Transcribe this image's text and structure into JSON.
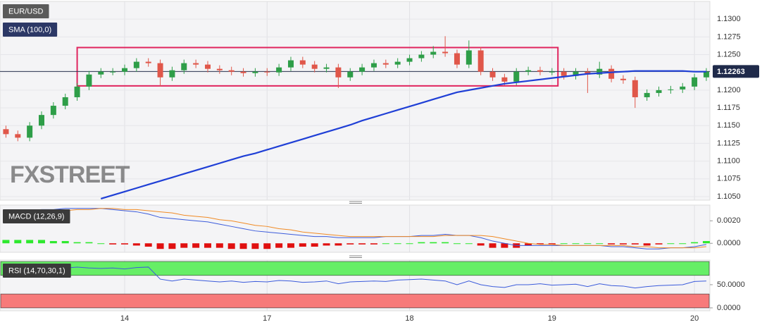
{
  "chart_data": [
    {
      "type": "candlestick",
      "title": "EUR/USD",
      "open": [
        1.1145,
        1.1138,
        1.1133,
        1.115,
        1.1165,
        1.1178,
        1.119,
        1.1205,
        1.1222,
        1.1226,
        1.1226,
        1.1231,
        1.124,
        1.1238,
        1.1218,
        1.1228,
        1.1238,
        1.1236,
        1.123,
        1.1228,
        1.1226,
        1.1224,
        1.1226,
        1.1225,
        1.1232,
        1.1242,
        1.1236,
        1.123,
        1.1232,
        1.1218,
        1.1226,
        1.1232,
        1.1238,
        1.1236,
        1.124,
        1.1245,
        1.125,
        1.1254,
        1.1252,
        1.1236,
        1.1256,
        1.1226,
        1.1218,
        1.1212,
        1.1226,
        1.1228,
        1.1226,
        1.1226,
        1.122,
        1.1226,
        1.1222,
        1.123,
        1.1216,
        1.1214,
        1.119,
        1.1196,
        1.12,
        1.1201,
        1.1205,
        1.1218
      ],
      "high": [
        1.115,
        1.1143,
        1.1155,
        1.117,
        1.1183,
        1.1195,
        1.121,
        1.1227,
        1.1231,
        1.1231,
        1.1236,
        1.1245,
        1.1245,
        1.1243,
        1.1233,
        1.1243,
        1.1243,
        1.1241,
        1.1235,
        1.1233,
        1.1231,
        1.1231,
        1.1231,
        1.1237,
        1.1247,
        1.1247,
        1.1241,
        1.1237,
        1.1237,
        1.1231,
        1.1237,
        1.1243,
        1.1243,
        1.1245,
        1.125,
        1.1255,
        1.1262,
        1.1276,
        1.1257,
        1.127,
        1.1261,
        1.1231,
        1.1223,
        1.1231,
        1.1233,
        1.1233,
        1.1231,
        1.1231,
        1.1231,
        1.1231,
        1.124,
        1.1235,
        1.1221,
        1.1219,
        1.1201,
        1.1205,
        1.1206,
        1.121,
        1.1223,
        1.1231
      ],
      "low": [
        1.1133,
        1.1128,
        1.1128,
        1.1145,
        1.116,
        1.1173,
        1.1185,
        1.12,
        1.1217,
        1.1221,
        1.1221,
        1.1226,
        1.1233,
        1.1205,
        1.1213,
        1.1223,
        1.1231,
        1.1225,
        1.1223,
        1.1221,
        1.1219,
        1.1219,
        1.122,
        1.122,
        1.1227,
        1.1231,
        1.1225,
        1.1225,
        1.1203,
        1.1213,
        1.1221,
        1.1227,
        1.1231,
        1.1231,
        1.1235,
        1.124,
        1.1245,
        1.1247,
        1.1231,
        1.1231,
        1.1221,
        1.1213,
        1.1207,
        1.1207,
        1.1221,
        1.1221,
        1.1221,
        1.1215,
        1.1215,
        1.1196,
        1.1217,
        1.1211,
        1.1209,
        1.1175,
        1.1185,
        1.1191,
        1.1195,
        1.1196,
        1.12,
        1.1213
      ],
      "close": [
        1.1138,
        1.1133,
        1.115,
        1.1165,
        1.1178,
        1.119,
        1.1205,
        1.1222,
        1.1226,
        1.1226,
        1.1231,
        1.124,
        1.1238,
        1.1218,
        1.1228,
        1.1238,
        1.1236,
        1.123,
        1.1228,
        1.1226,
        1.1224,
        1.1226,
        1.1225,
        1.1232,
        1.1242,
        1.1236,
        1.123,
        1.1232,
        1.1218,
        1.1226,
        1.1232,
        1.1238,
        1.1236,
        1.124,
        1.1245,
        1.125,
        1.1254,
        1.1252,
        1.1236,
        1.1256,
        1.1226,
        1.1218,
        1.1212,
        1.1226,
        1.1228,
        1.1226,
        1.1226,
        1.122,
        1.1226,
        1.1222,
        1.123,
        1.1216,
        1.1214,
        1.119,
        1.1196,
        1.12,
        1.1201,
        1.1205,
        1.1218,
        1.1226
      ],
      "up_color": "#2e9e48",
      "down_color": "#e0574a",
      "series": [
        {
          "name": "SMA (100,0)",
          "color": "#1f3fd6",
          "values": [
            null,
            null,
            null,
            null,
            null,
            null,
            null,
            null,
            1.1047,
            1.1052,
            1.1057,
            1.1062,
            1.1067,
            1.1072,
            1.1077,
            1.1082,
            1.1087,
            1.1092,
            1.1097,
            1.1102,
            1.1107,
            1.1111,
            1.1116,
            1.1121,
            1.1126,
            1.1131,
            1.1136,
            1.1141,
            1.1146,
            1.1151,
            1.1157,
            1.1162,
            1.1167,
            1.1172,
            1.1177,
            1.1182,
            1.1187,
            1.1192,
            1.1197,
            1.12,
            1.1203,
            1.1206,
            1.1209,
            1.1211,
            1.1213,
            1.1215,
            1.1217,
            1.1219,
            1.1221,
            1.1223,
            1.1224,
            1.1225,
            1.1226,
            1.1227,
            1.1227,
            1.1227,
            1.1227,
            1.1227,
            1.1226,
            1.1226
          ]
        }
      ],
      "last_price": 1.12263,
      "range_box": {
        "xlim": [
          6,
          46.5
        ],
        "ylim": [
          1.1206,
          1.126
        ],
        "color": "#e0245e"
      },
      "watermark": "FXSTREET",
      "xlim": [
        -0.5,
        59.3
      ],
      "xticks": [
        {
          "value": 10,
          "label": "14"
        },
        {
          "value": 22,
          "label": "17"
        },
        {
          "value": 34,
          "label": "18"
        },
        {
          "value": 46,
          "label": "19"
        },
        {
          "value": 58,
          "label": "20"
        }
      ],
      "ylim": [
        1.1045,
        1.1325
      ],
      "yticks": [
        {
          "value": 1.105,
          "label": "1.1050"
        },
        {
          "value": 1.1075,
          "label": "1.1075"
        },
        {
          "value": 1.11,
          "label": "1.1100"
        },
        {
          "value": 1.1125,
          "label": "1.1125"
        },
        {
          "value": 1.115,
          "label": "1.1150"
        },
        {
          "value": 1.1175,
          "label": "1.1175"
        },
        {
          "value": 1.12,
          "label": "1.1200"
        },
        {
          "value": 1.1225,
          "label": "1.1225"
        },
        {
          "value": 1.125,
          "label": "1.1250"
        },
        {
          "value": 1.1275,
          "label": "1.1275"
        },
        {
          "value": 1.13,
          "label": "1.1300"
        }
      ],
      "grid": true
    },
    {
      "type": "macd",
      "title": "MACD (12,26,9)",
      "series": [
        {
          "color": "#3b5bdb",
          "values": [
            0.0027,
            0.0028,
            0.0029,
            0.003,
            0.003,
            0.0031,
            0.0031,
            0.0031,
            0.0031,
            0.003,
            0.0029,
            0.0028,
            0.0026,
            0.0023,
            0.0022,
            0.0021,
            0.002,
            0.0019,
            0.0017,
            0.0015,
            0.0013,
            0.0011,
            0.001,
            0.0009,
            0.0008,
            0.0007,
            0.0006,
            0.0006,
            0.0005,
            0.0005,
            0.0005,
            0.0005,
            0.0006,
            0.0006,
            0.0006,
            0.0007,
            0.0007,
            0.0008,
            0.0007,
            0.0007,
            0.0005,
            0.0002,
            0.0,
            -0.0002,
            -0.0002,
            -0.0002,
            -0.0002,
            -0.0002,
            -0.0002,
            -0.0002,
            -0.0002,
            -0.0003,
            -0.0003,
            -0.0004,
            -0.0005,
            -0.0005,
            -0.0004,
            -0.0004,
            -0.0003,
            -0.0001
          ]
        },
        {
          "color": "#f08a24",
          "values": [
            0.0024,
            0.0025,
            0.0026,
            0.0027,
            0.0028,
            0.0029,
            0.003,
            0.003,
            0.0031,
            0.0031,
            0.003,
            0.003,
            0.0029,
            0.0028,
            0.0027,
            0.0025,
            0.0024,
            0.0023,
            0.0021,
            0.002,
            0.0018,
            0.0016,
            0.0015,
            0.0013,
            0.0012,
            0.001,
            0.0009,
            0.0008,
            0.0007,
            0.0006,
            0.0006,
            0.0006,
            0.0006,
            0.0006,
            0.0006,
            0.0006,
            0.0006,
            0.0007,
            0.0007,
            0.0007,
            0.0007,
            0.0006,
            0.0004,
            0.0002,
            0.0,
            -0.0001,
            -0.0001,
            -0.0002,
            -0.0002,
            -0.0002,
            -0.0002,
            -0.0002,
            -0.0002,
            -0.0003,
            -0.0003,
            -0.0004,
            -0.0004,
            -0.0004,
            -0.0004,
            -0.0003
          ]
        }
      ],
      "histogram": {
        "up_color": "#2ee82e",
        "down_color": "#e01010",
        "values": [
          0.0003,
          0.0003,
          0.0003,
          0.0003,
          0.0002,
          0.0002,
          0.0001,
          0.0001,
          0,
          -0.0001,
          -0.0001,
          -0.0002,
          -0.0003,
          -0.0005,
          -0.0005,
          -0.0004,
          -0.0004,
          -0.0004,
          -0.0004,
          -0.0005,
          -0.0005,
          -0.0005,
          -0.0005,
          -0.0004,
          -0.0004,
          -0.0003,
          -0.0003,
          -0.0002,
          -0.0002,
          -0.0001,
          -0.0001,
          -0.0001,
          0,
          0,
          0,
          0.0001,
          0.0001,
          0.0001,
          0,
          0,
          -0.0002,
          -0.0004,
          -0.0004,
          -0.0004,
          -0.0002,
          -0.0001,
          -0.0001,
          0,
          0,
          0,
          0,
          -0.0001,
          -0.0001,
          -0.0001,
          -0.0002,
          -0.0001,
          0,
          0,
          0.0001,
          0.0002
        ]
      },
      "ylim": [
        -0.0008,
        0.0034
      ],
      "yticks": [
        {
          "value": 0,
          "label": "0.0000"
        },
        {
          "value": 0.002,
          "label": "0.0020"
        }
      ]
    },
    {
      "type": "line",
      "title": "RSI (14,70,30,1)",
      "series": [
        {
          "color": "#3b5bdb",
          "values": [
            84,
            86,
            87,
            85,
            87,
            86,
            88,
            86,
            85,
            86,
            84,
            87,
            88,
            62,
            58,
            62,
            60,
            58,
            56,
            58,
            55,
            57,
            56,
            59,
            58,
            55,
            56,
            58,
            52,
            56,
            57,
            58,
            57,
            60,
            61,
            62,
            60,
            58,
            50,
            58,
            50,
            46,
            44,
            50,
            50,
            52,
            49,
            50,
            51,
            46,
            52,
            48,
            47,
            43,
            46,
            48,
            49,
            50,
            57,
            58
          ]
        }
      ],
      "bands": [
        {
          "from": 70,
          "to": 100,
          "color": "#66ee66"
        },
        {
          "from": 0,
          "to": 30,
          "color": "#f77a7a"
        }
      ],
      "ylim": [
        -6.25,
        103.1
      ],
      "yticks": [
        {
          "value": 0,
          "label": "0.0000"
        },
        {
          "value": 50,
          "label": "50.0000"
        }
      ]
    }
  ]
}
